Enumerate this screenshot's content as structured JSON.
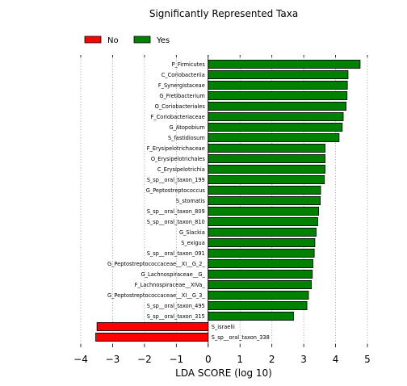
{
  "chart_data": {
    "type": "bar",
    "orientation": "horizontal",
    "title": "Significantly Represented Taxa",
    "xlabel": "LDA SCORE (log 10)",
    "ylabel": "",
    "xlim": [
      -4,
      5
    ],
    "xticks": [
      -4,
      -3,
      -2,
      -1,
      0,
      1,
      2,
      3,
      4,
      5
    ],
    "xtick_labels": [
      "−4",
      "−3",
      "−2",
      "−1",
      "0",
      "1",
      "2",
      "3",
      "4",
      "5"
    ],
    "grid": "vertical dotted",
    "legend_position": "top-left",
    "series": [
      {
        "name": "No",
        "color": "#ff0000"
      },
      {
        "name": "Yes",
        "color": "#008000"
      }
    ],
    "bars": [
      {
        "label": "P_Firmicutes",
        "value": 4.77,
        "group": "Yes"
      },
      {
        "label": "C_Coriobacteriia",
        "value": 4.39,
        "group": "Yes"
      },
      {
        "label": "F_Synergistaceae",
        "value": 4.37,
        "group": "Yes"
      },
      {
        "label": "G_Fretibacterium",
        "value": 4.36,
        "group": "Yes"
      },
      {
        "label": "O_Coriobacteriales",
        "value": 4.33,
        "group": "Yes"
      },
      {
        "label": "F_Coriobacteriaceae",
        "value": 4.24,
        "group": "Yes"
      },
      {
        "label": "G_Atopobium",
        "value": 4.21,
        "group": "Yes"
      },
      {
        "label": "S_fastidiosum",
        "value": 4.11,
        "group": "Yes"
      },
      {
        "label": "F_Erysipelotrichaceae",
        "value": 3.67,
        "group": "Yes"
      },
      {
        "label": "O_Erysipelotrichales",
        "value": 3.67,
        "group": "Yes"
      },
      {
        "label": "C_Erysipelotrichia",
        "value": 3.67,
        "group": "Yes"
      },
      {
        "label": "S_sp__oral_taxon_199",
        "value": 3.65,
        "group": "Yes"
      },
      {
        "label": "G_Peptostreptococcus",
        "value": 3.53,
        "group": "Yes"
      },
      {
        "label": "S_stomatis",
        "value": 3.52,
        "group": "Yes"
      },
      {
        "label": "S_sp__oral_taxon_809",
        "value": 3.47,
        "group": "Yes"
      },
      {
        "label": "S_sp__oral_taxon_810",
        "value": 3.44,
        "group": "Yes"
      },
      {
        "label": "G_Slackia",
        "value": 3.39,
        "group": "Yes"
      },
      {
        "label": "S_exigua",
        "value": 3.35,
        "group": "Yes"
      },
      {
        "label": "S_sp__oral_taxon_091",
        "value": 3.33,
        "group": "Yes"
      },
      {
        "label": "G_Peptostreptococcaceae__XI__G_2_",
        "value": 3.29,
        "group": "Yes"
      },
      {
        "label": "G_Lachnospiraceae__G_",
        "value": 3.27,
        "group": "Yes"
      },
      {
        "label": "F_Lachnospiraceae__XIVa_",
        "value": 3.24,
        "group": "Yes"
      },
      {
        "label": "G_Peptostreptococcaceae__XI__G_3_",
        "value": 3.15,
        "group": "Yes"
      },
      {
        "label": "S_sp__oral_taxon_495",
        "value": 3.1,
        "group": "Yes"
      },
      {
        "label": "S_sp__oral_taxon_315",
        "value": 2.68,
        "group": "Yes"
      },
      {
        "label": "S_israelii",
        "value": -3.49,
        "group": "No"
      },
      {
        "label": "S_sp__oral_taxon_338",
        "value": -3.53,
        "group": "No"
      }
    ]
  }
}
